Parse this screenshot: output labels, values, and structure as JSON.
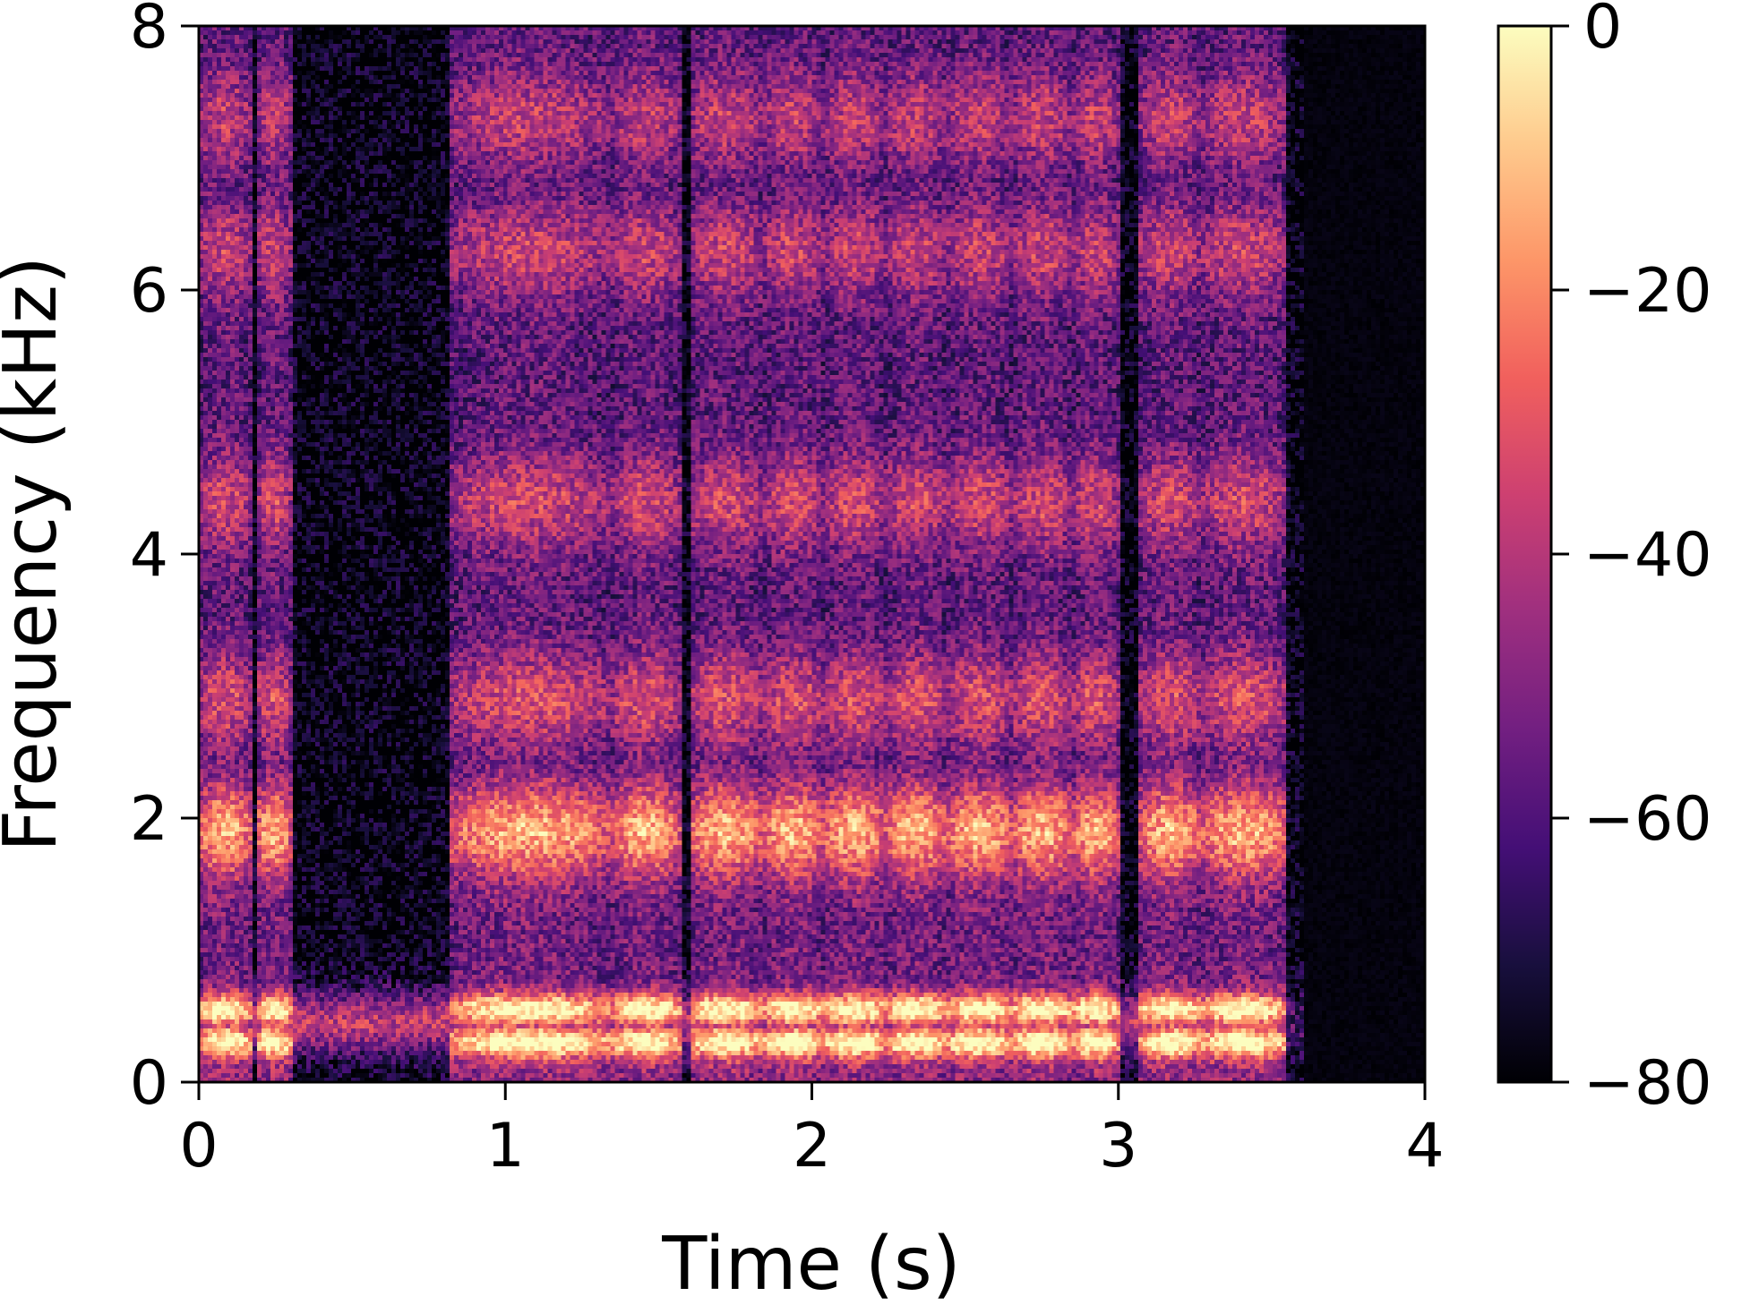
{
  "chart_data": {
    "type": "heatmap",
    "title": "",
    "xlabel": "Time (s)",
    "ylabel": "Frequency (kHz)",
    "xlim": [
      0,
      4
    ],
    "ylim": [
      0,
      8
    ],
    "x_ticks": [
      "0",
      "1",
      "2",
      "3",
      "4"
    ],
    "y_ticks": [
      "0",
      "2",
      "4",
      "6",
      "8"
    ],
    "x_tick_values": [
      0,
      1,
      2,
      3,
      4
    ],
    "y_tick_values": [
      0,
      2,
      4,
      6,
      8
    ],
    "colormap": "magma",
    "colorbar": {
      "range": [
        -80,
        0
      ],
      "ticks": [
        "0",
        "−20",
        "−40",
        "−60",
        "−80"
      ],
      "tick_values": [
        0,
        -20,
        -40,
        -60,
        -80
      ],
      "colors": [
        "#000004",
        "#180f3d",
        "#440f76",
        "#721f81",
        "#9e2f7f",
        "#cd4071",
        "#f1605d",
        "#fd9668",
        "#feca8d",
        "#fcfdbf"
      ]
    },
    "grid": false,
    "segments_s": [
      [
        0.0,
        0.17
      ],
      [
        0.19,
        0.3
      ],
      [
        0.82,
        1.34
      ],
      [
        1.35,
        1.57
      ],
      [
        1.6,
        1.84
      ],
      [
        1.84,
        2.04
      ],
      [
        2.04,
        2.24
      ],
      [
        2.24,
        2.44
      ],
      [
        2.44,
        2.65
      ],
      [
        2.65,
        2.85
      ],
      [
        2.85,
        3.0
      ],
      [
        3.07,
        3.27
      ],
      [
        3.27,
        3.55
      ]
    ],
    "formants_khz": [
      0.3,
      0.55,
      1.9,
      2.9,
      4.4,
      6.3,
      7.3
    ],
    "active_range_s": [
      0.0,
      3.6
    ],
    "db_range": [
      -80,
      0
    ]
  }
}
